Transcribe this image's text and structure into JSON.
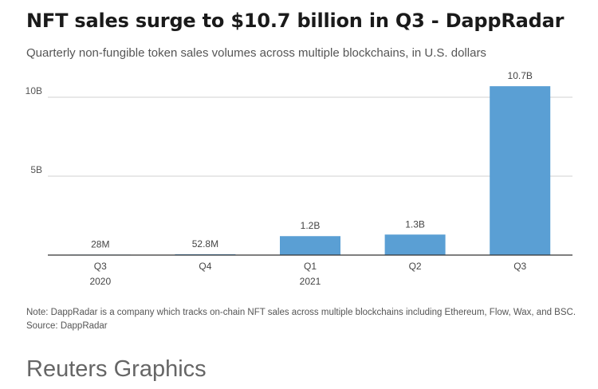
{
  "title": "NFT sales surge to $10.7 billion in Q3 - DappRadar",
  "subtitle": "Quarterly non-fungible token sales volumes across multiple blockchains, in U.S. dollars",
  "note": "Note: DappRadar is a company which tracks on-chain NFT sales across multiple blockchains including Ethereum, Flow, Wax, and BSC.",
  "source": "Source: DappRadar",
  "brand": "Reuters Graphics",
  "colors": {
    "bar": "#5a9fd4",
    "grid": "#d0d0d0",
    "axis": "#333333"
  },
  "chart_data": {
    "type": "bar",
    "title": "NFT sales surge to $10.7 billion in Q3 - DappRadar",
    "xlabel": "",
    "ylabel": "",
    "ylim": [
      0,
      11
    ],
    "grid": true,
    "yticks": [
      {
        "value": 5,
        "label": "5B"
      },
      {
        "value": 10,
        "label": "10B"
      }
    ],
    "categories": [
      {
        "label": "Q3",
        "sublabel": "2020"
      },
      {
        "label": "Q4",
        "sublabel": ""
      },
      {
        "label": "Q1",
        "sublabel": "2021"
      },
      {
        "label": "Q2",
        "sublabel": ""
      },
      {
        "label": "Q3",
        "sublabel": ""
      }
    ],
    "values": [
      0.028,
      0.0528,
      1.2,
      1.3,
      10.7
    ],
    "value_labels": [
      "28M",
      "52.8M",
      "1.2B",
      "1.3B",
      "10.7B"
    ],
    "unit": "billion U.S. dollars"
  }
}
